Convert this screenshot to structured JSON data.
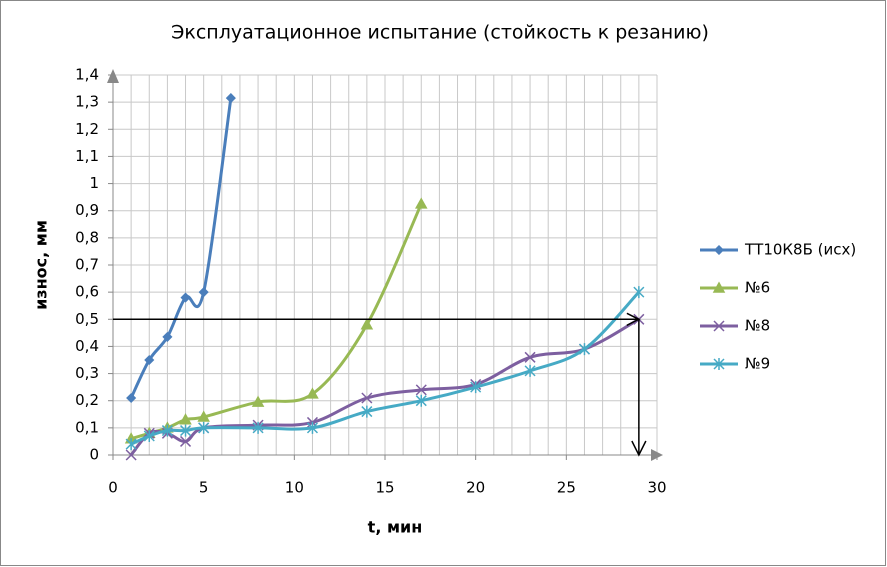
{
  "chart_data": {
    "type": "line",
    "title": "Эксплуатационное испытание (стойкость к резанию)",
    "x_label": "t, мин",
    "y_label": "износ, мм",
    "xlim": [
      0,
      30
    ],
    "xticks": [
      0,
      5,
      10,
      15,
      20,
      25,
      30
    ],
    "ylim": [
      0,
      1.4
    ],
    "yticks": [
      0,
      {
        "value": 0.1,
        "label": "0,1"
      },
      {
        "value": 0.2,
        "label": "0,2"
      },
      {
        "value": 0.3,
        "label": "0,3"
      },
      {
        "value": 0.4,
        "label": "0,4"
      },
      {
        "value": 0.5,
        "label": "0,5"
      },
      {
        "value": 0.6,
        "label": "0,6"
      },
      {
        "value": 0.7,
        "label": "0,7"
      },
      {
        "value": 0.8,
        "label": "0,8"
      },
      {
        "value": 0.9,
        "label": "0,9"
      },
      1,
      {
        "value": 1.1,
        "label": "1,1"
      },
      {
        "value": 1.2,
        "label": "1,2"
      },
      {
        "value": 1.3,
        "label": "1,3"
      },
      {
        "value": 1.4,
        "label": "1,4"
      }
    ],
    "grid": true,
    "legend": "right",
    "guide": {
      "x": 29,
      "y": 0.5
    },
    "series": [
      {
        "name": "ТТ10К8Б (исх)",
        "color": "#4a7ebb",
        "marker": "diamond",
        "x": [
          1,
          2,
          3,
          4,
          5,
          6.5
        ],
        "values": [
          0.21,
          0.35,
          0.435,
          0.58,
          0.6,
          1.315
        ]
      },
      {
        "name": "№6",
        "color": "#98b954",
        "marker": "triangle",
        "x": [
          1,
          2,
          3,
          4,
          5,
          8,
          11,
          14,
          17
        ],
        "values": [
          0.06,
          0.08,
          0.1,
          0.13,
          0.14,
          0.195,
          0.225,
          0.48,
          0.925
        ]
      },
      {
        "name": "№8",
        "color": "#7d5fa0",
        "marker": "x",
        "x": [
          1,
          2,
          3,
          4,
          5,
          8,
          11,
          14,
          17,
          20,
          23,
          26,
          29
        ],
        "values": [
          0,
          0.08,
          0.08,
          0.05,
          0.1,
          0.11,
          0.12,
          0.21,
          0.24,
          0.26,
          0.36,
          0.39,
          0.5
        ]
      },
      {
        "name": "№9",
        "color": "#46aac5",
        "marker": "star",
        "x": [
          1,
          2,
          3,
          4,
          5,
          8,
          11,
          14,
          17,
          20,
          23,
          26,
          29
        ],
        "values": [
          0.04,
          0.07,
          0.09,
          0.09,
          0.1,
          0.1,
          0.1,
          0.16,
          0.2,
          0.25,
          0.31,
          0.39,
          0.6
        ]
      }
    ]
  }
}
